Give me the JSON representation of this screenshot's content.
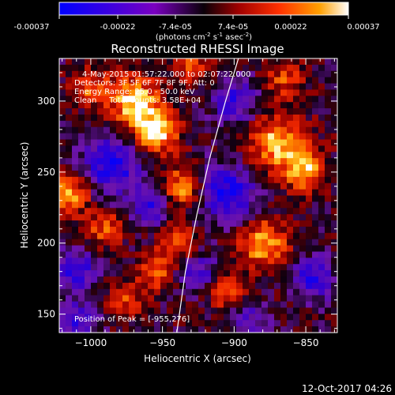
{
  "colorbar": {
    "ticks": [
      "-0.00037",
      "-0.00022",
      "-7.4e-05",
      "7.4e-05",
      "0.00022",
      "0.00037"
    ],
    "units_line1": "(photons cm",
    "units_sup1": "-2",
    "units_mid1": " s",
    "units_sup2": "-1",
    "units_mid2": " asec",
    "units_sup3": "-2",
    "units_end": ")"
  },
  "chart_data": {
    "type": "heatmap",
    "title": "Reconstructed RHESSI Image",
    "xlabel": "Heliocentric X (arcsec)",
    "ylabel": "Heliocentric Y (arcsec)",
    "xlim": [
      -1022,
      -828
    ],
    "ylim": [
      137,
      330
    ],
    "xticks": [
      -1000,
      -950,
      -900,
      -850
    ],
    "yticks": [
      150,
      200,
      250,
      300
    ],
    "xtick_labels": [
      "−1000",
      "−950",
      "−900",
      "−850"
    ],
    "ytick_labels": [
      "150",
      "200",
      "250",
      "300"
    ],
    "color_range": [
      -0.00037,
      0.00037
    ],
    "annotations": [
      "4-May-2015 01:57:22.000 to 02:07:22.000",
      "Detectors: 3F 5F 6F 7F 8F 9F, Att: 0",
      "Energy Range: 25.0 - 50.0 keV",
      "Clean     Total counts: 3.58E+04"
    ],
    "peak_label": "Position of Peak = [-955,276]",
    "peak": [
      -955,
      276
    ],
    "limb_curve": [
      [
        -940,
        137
      ],
      [
        -934,
        180
      ],
      [
        -926,
        220
      ],
      [
        -917,
        260
      ],
      [
        -906,
        300
      ],
      [
        -897,
        330
      ]
    ]
  },
  "footer": {
    "timestamp": "12-Oct-2017 04:26"
  }
}
